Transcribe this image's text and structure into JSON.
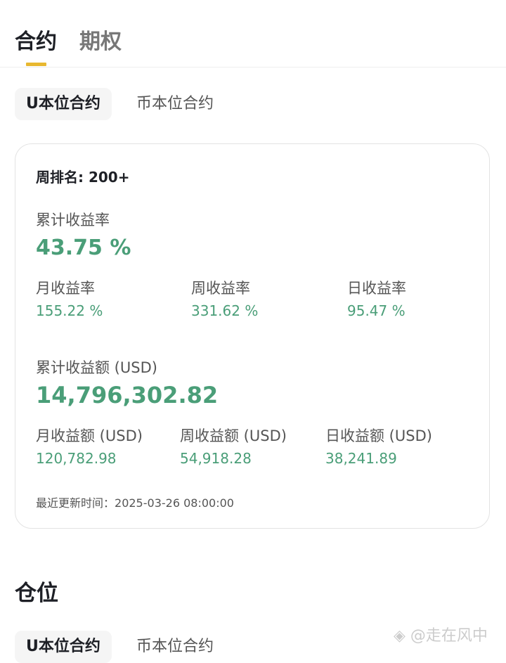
{
  "top_tabs": [
    {
      "label": "合约",
      "active": true
    },
    {
      "label": "期权",
      "active": false
    }
  ],
  "sub_tabs": [
    {
      "label": "U本位合约",
      "active": true
    },
    {
      "label": "币本位合约",
      "active": false
    }
  ],
  "card": {
    "rank": "周排名: 200+",
    "cum_rate_label": "累计收益率",
    "cum_rate": "43.75 %",
    "rates": [
      {
        "label": "月收益率",
        "value": "155.22 %"
      },
      {
        "label": "周收益率",
        "value": "331.62 %"
      },
      {
        "label": "日收益率",
        "value": "95.47 %"
      }
    ],
    "cum_amount_label": "累计收益额 (USD)",
    "cum_amount": "14,796,302.82",
    "amounts": [
      {
        "label": "月收益额 (USD)",
        "value": "120,782.98"
      },
      {
        "label": "周收益额 (USD)",
        "value": "54,918.28"
      },
      {
        "label": "日收益额 (USD)",
        "value": "38,241.89"
      }
    ],
    "update_label": "最近更新时间：",
    "update_time": "2025-03-26 08:00:00"
  },
  "positions": {
    "title": "仓位",
    "sub_tabs": [
      {
        "label": "U本位合约"
      },
      {
        "label": "币本位合约"
      }
    ]
  },
  "watermark": "@走在风中",
  "colors": {
    "accent": "#e8b830",
    "positive": "#4a9e78"
  }
}
